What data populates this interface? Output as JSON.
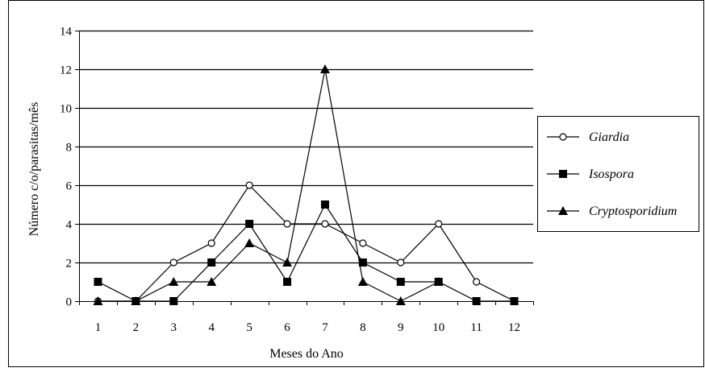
{
  "chart_data": {
    "type": "line",
    "title": "",
    "xlabel": "Meses do Ano",
    "ylabel": "Número c/o/parasitas/mês",
    "categories": [
      "1",
      "2",
      "3",
      "4",
      "5",
      "6",
      "7",
      "8",
      "9",
      "10",
      "11",
      "12"
    ],
    "ylim": [
      0,
      14
    ],
    "yticks": [
      0,
      2,
      4,
      6,
      8,
      10,
      12,
      14
    ],
    "grid": true,
    "legend_position": "right",
    "series": [
      {
        "name": "Giardia",
        "marker": "open-circle",
        "values": [
          0,
          0,
          2,
          3,
          6,
          4,
          4,
          3,
          2,
          4,
          1,
          0
        ]
      },
      {
        "name": "Isospora",
        "marker": "filled-square",
        "values": [
          1,
          0,
          0,
          2,
          4,
          1,
          5,
          2,
          1,
          1,
          0,
          0
        ]
      },
      {
        "name": "Cryptosporidium",
        "marker": "filled-triangle",
        "values": [
          0,
          0,
          1,
          1,
          3,
          2,
          12,
          1,
          0,
          1,
          null,
          null
        ]
      }
    ],
    "colors": {
      "line": "#000000",
      "background": "#ffffff"
    }
  }
}
